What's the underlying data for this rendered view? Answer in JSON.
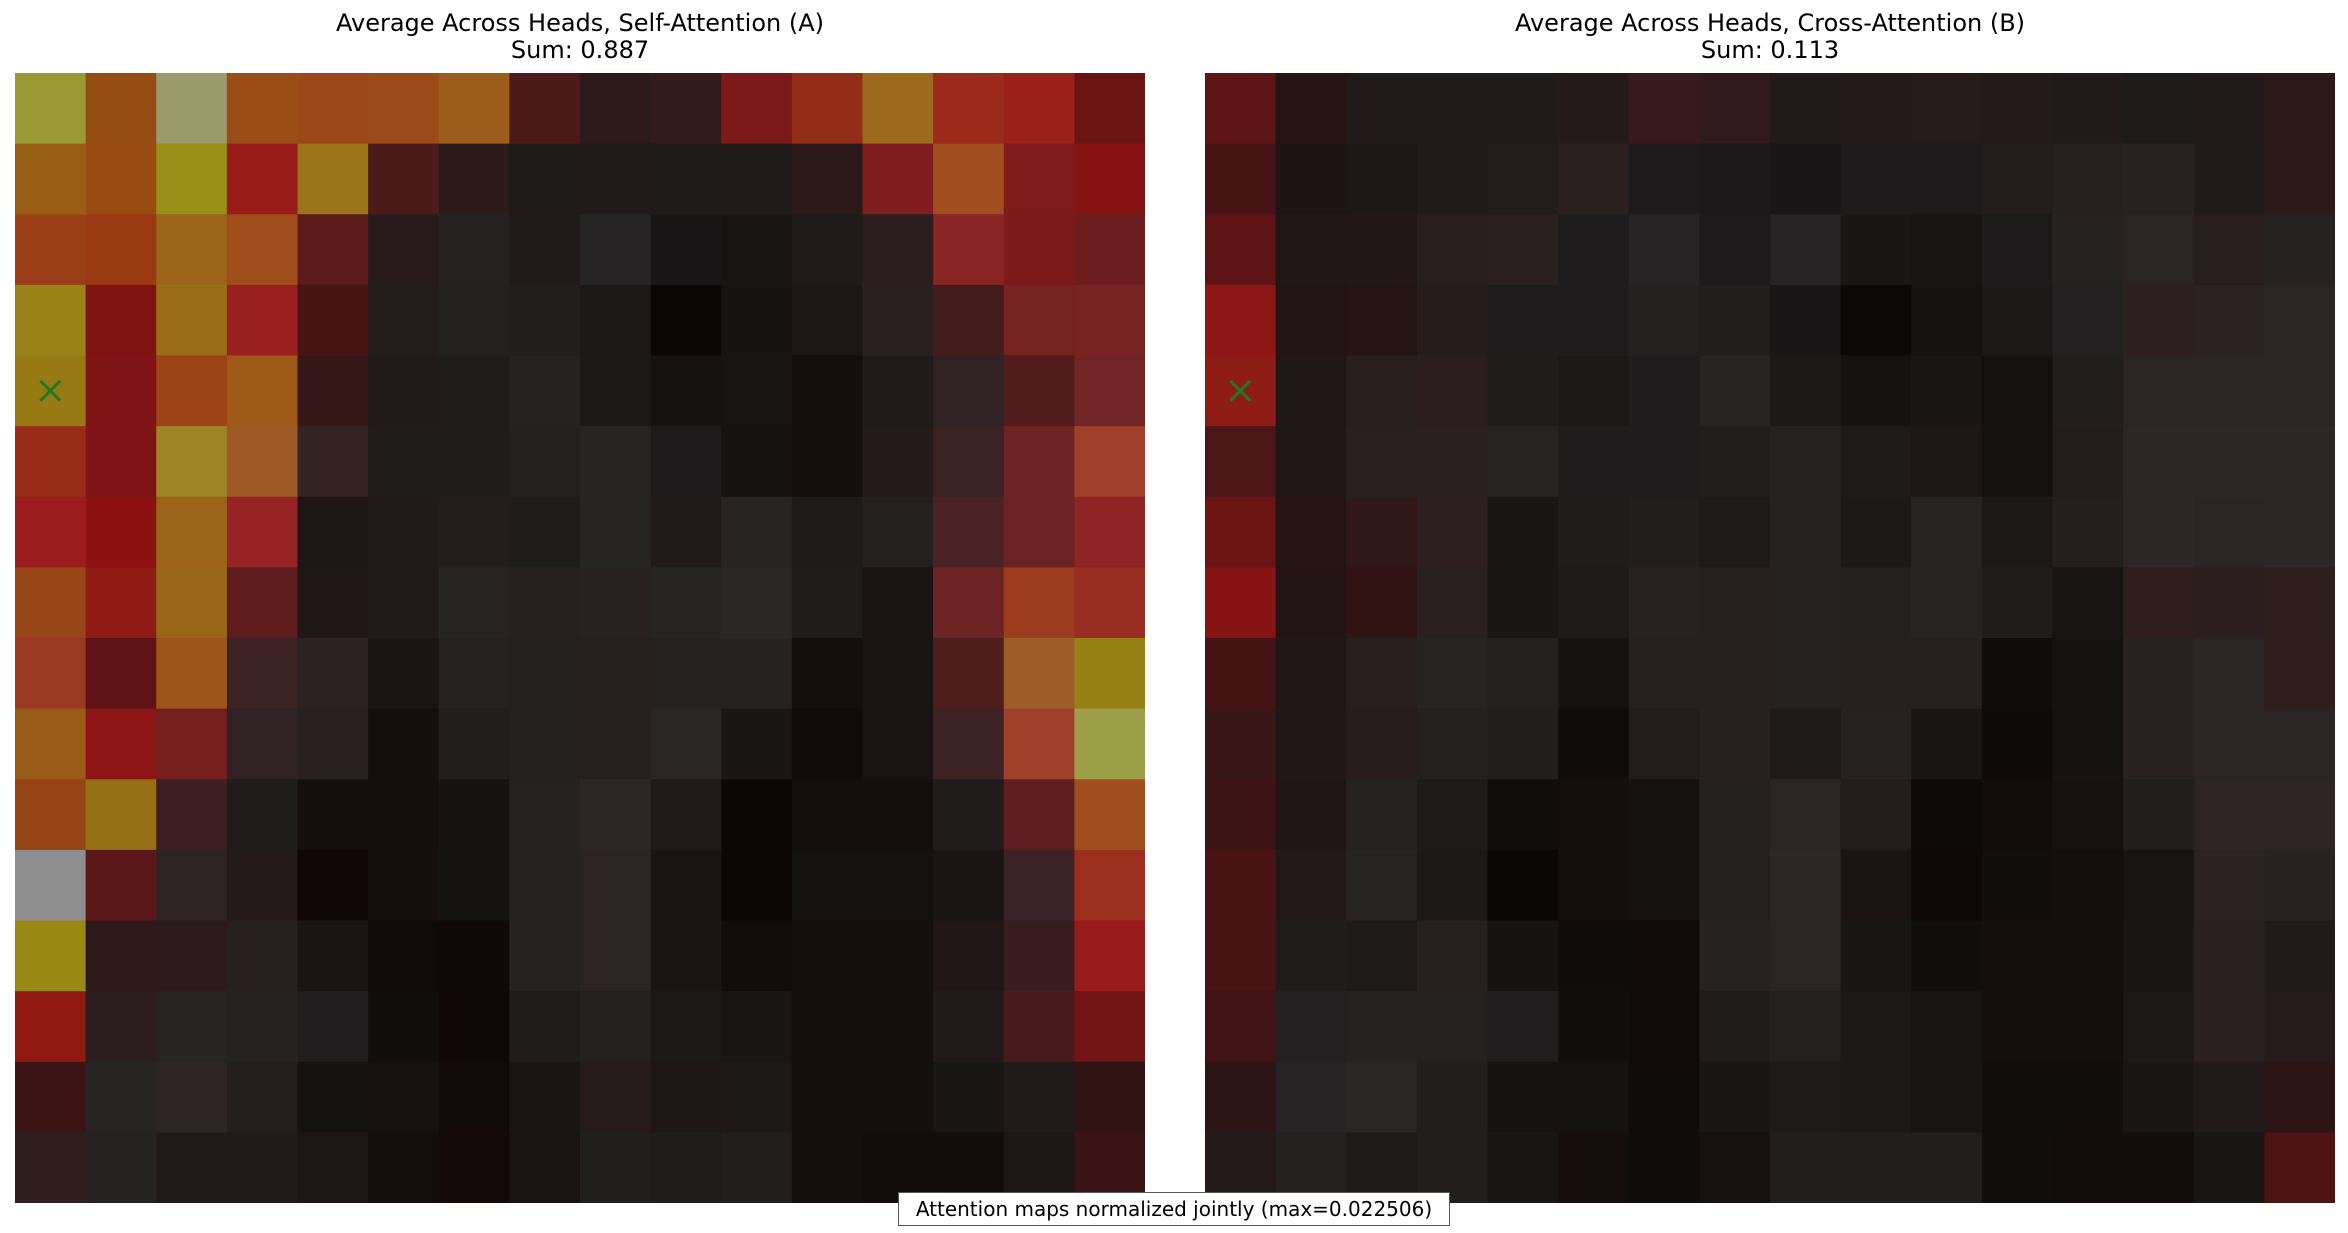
{
  "caption": "Attention maps normalized jointly (max=0.022506)",
  "colors": {
    "marker": "#1f7a1f",
    "caption_border": "#555555"
  },
  "chart_data": [
    {
      "type": "heatmap",
      "title": "Average Across Heads, Self-Attention (A)",
      "subtitle": "Sum: 0.887",
      "rows": 16,
      "cols": 16,
      "marker": {
        "symbol": "x",
        "row": 4,
        "col": 0
      },
      "cell_colors": [
        [
          "#9a9a34",
          "#964d13",
          "#9a9a6a",
          "#9a4d17",
          "#9c4819",
          "#9b4c1a",
          "#9c5c1c",
          "#4c1a1a",
          "#2d1a1a",
          "#341a1a",
          "#7c1a1a",
          "#922e18",
          "#9c6a1c",
          "#9a2a1a",
          "#9a2018",
          "#6a1414"
        ],
        [
          "#985e14",
          "#984c12",
          "#989018",
          "#9a1c1a",
          "#9c7418",
          "#4c1a1a",
          "#2a1a1a",
          "#1e1a1a",
          "#201a1a",
          "#1e1a1a",
          "#201a1a",
          "#2c1a1a",
          "#801c1e",
          "#a04e20",
          "#7e1a1a",
          "#861414"
        ],
        [
          "#9a3e18",
          "#9a3a12",
          "#9c6418",
          "#9e4c1a",
          "#5c1a1a",
          "#281a1a",
          "#262222",
          "#201a1a",
          "#262424",
          "#181616",
          "#181414",
          "#201a1a",
          "#2c1e1e",
          "#882424",
          "#7c1a1a",
          "#6c1e1e"
        ],
        [
          "#9a8218",
          "#801212",
          "#9a6e16",
          "#9a2020",
          "#481414",
          "#241c1c",
          "#242020",
          "#221e1e",
          "#1c1818",
          "#0c0606",
          "#161212",
          "#1c1616",
          "#2a2020",
          "#441c1c",
          "#742222",
          "#782424"
        ],
        [
          "#987a14",
          "#7e1414",
          "#9c4418",
          "#9c5a16",
          "#341818",
          "#201a1a",
          "#201c1c",
          "#262222",
          "#1c1818",
          "#161212",
          "#181414",
          "#140e0e",
          "#221a1a",
          "#302222",
          "#521c1c",
          "#702424"
        ],
        [
          "#982c16",
          "#801414",
          "#9e8424",
          "#9e5a24",
          "#342424",
          "#201c1c",
          "#201c1c",
          "#242020",
          "#282424",
          "#1c1a1a",
          "#161212",
          "#140e0e",
          "#241a1a",
          "#3c2222",
          "#6c2424",
          "#a0402a"
        ],
        [
          "#9a1c1c",
          "#8c1212",
          "#9c6418",
          "#962424",
          "#1e1616",
          "#201a1a",
          "#221c1c",
          "#201c1c",
          "#282424",
          "#221a1a",
          "#282424",
          "#1e1a1a",
          "#242020",
          "#4a2226",
          "#6a2222",
          "#8e2424"
        ],
        [
          "#984618",
          "#901a14",
          "#986818",
          "#5e1c1c",
          "#201616",
          "#221a1a",
          "#282424",
          "#282020",
          "#2a2222",
          "#282424",
          "#2a2626",
          "#201c1c",
          "#1a1414",
          "#6c2424",
          "#9c3c1c",
          "#982e22"
        ],
        [
          "#9a3a22",
          "#5e1414",
          "#9c5418",
          "#3c2222",
          "#2c2222",
          "#1a1414",
          "#262222",
          "#242020",
          "#262020",
          "#262222",
          "#262222",
          "#140e0e",
          "#1a1414",
          "#4e1e1e",
          "#9c5e26",
          "#968014"
        ],
        [
          "#9a5a18",
          "#8c1414",
          "#741e1e",
          "#302222",
          "#2a2020",
          "#140e0e",
          "#221e1e",
          "#242020",
          "#262020",
          "#2a2626",
          "#1a1616",
          "#100a0a",
          "#1a1212",
          "#3c2222",
          "#a0402a",
          "#9c9e48"
        ],
        [
          "#964414",
          "#967014",
          "#3e1e22",
          "#201c1c",
          "#160e0e",
          "#140e0e",
          "#161212",
          "#262222",
          "#2c2626",
          "#201a1a",
          "#0c0606",
          "#140e0e",
          "#140e0e",
          "#201c1c",
          "#5e1e22",
          "#a04e1c"
        ],
        [
          "#8e8e8e",
          "#5c1818",
          "#2e2222",
          "#241a1a",
          "#100606",
          "#160e0e",
          "#161212",
          "#262222",
          "#2c2424",
          "#1c1414",
          "#0e0606",
          "#141010",
          "#141010",
          "#1a1414",
          "#3c2226",
          "#9c2e1e"
        ],
        [
          "#988814",
          "#2e1a1a",
          "#2c1a1c",
          "#262020",
          "#1c1414",
          "#100a0a",
          "#100808",
          "#262222",
          "#2c2424",
          "#1a1414",
          "#120c0c",
          "#140e0e",
          "#140e0e",
          "#201616",
          "#381c1e",
          "#981a1a"
        ],
        [
          "#901a12",
          "#2c1e1e",
          "#282424",
          "#262222",
          "#201e1e",
          "#120e0e",
          "#100808",
          "#201c1c",
          "#242020",
          "#1c1818",
          "#1a1616",
          "#140e0e",
          "#140e0e",
          "#221a1a",
          "#481c1c",
          "#721414"
        ],
        [
          "#3c1414",
          "#282424",
          "#2e2424",
          "#241e1e",
          "#161212",
          "#161010",
          "#120a0a",
          "#1a1414",
          "#261a1a",
          "#1e1616",
          "#1c1818",
          "#140e0e",
          "#140e0e",
          "#1a1616",
          "#201a1a",
          "#301414"
        ],
        [
          "#2e1e1e",
          "#262222",
          "#221a1a",
          "#201a1a",
          "#1e1616",
          "#160e0e",
          "#140808",
          "#1a1212",
          "#221e1e",
          "#201c1c",
          "#221e1e",
          "#140e0e",
          "#140c0c",
          "#120c0c",
          "#1c1616",
          "#3a1414"
        ]
      ]
    },
    {
      "type": "heatmap",
      "title": "Average Across Heads, Cross-Attention (B)",
      "subtitle": "Sum: 0.113",
      "rows": 16,
      "cols": 16,
      "marker": {
        "symbol": "x",
        "row": 4,
        "col": 0
      },
      "cell_colors": [
        [
          "#5c1414",
          "#261414",
          "#201a1a",
          "#201a1a",
          "#201a1a",
          "#241a1a",
          "#361a1e",
          "#301a1e",
          "#221a1a",
          "#241a1a",
          "#261a1a",
          "#241a1a",
          "#221a1a",
          "#1e1a1a",
          "#221a1a",
          "#2c1a1a"
        ],
        [
          "#461414",
          "#1e1414",
          "#1e1616",
          "#201a1a",
          "#221c1c",
          "#2a2020",
          "#1c1a1a",
          "#1a1818",
          "#181616",
          "#1c1a1a",
          "#1c1a1a",
          "#221c1c",
          "#262020",
          "#2a2222",
          "#201a1a",
          "#2c1a1a"
        ],
        [
          "#5e1414",
          "#201616",
          "#221616",
          "#281e1e",
          "#2a2020",
          "#1e1c1c",
          "#262424",
          "#1c1a1a",
          "#262424",
          "#1a1616",
          "#181414",
          "#1c1a1a",
          "#262222",
          "#2a2424",
          "#281e1e",
          "#262222"
        ],
        [
          "#8e1616",
          "#221414",
          "#241414",
          "#261c1c",
          "#1e1c1c",
          "#1e1c1c",
          "#242020",
          "#221e1e",
          "#181616",
          "#0c0808",
          "#161212",
          "#1c1818",
          "#222020",
          "#2e2020",
          "#2c2222",
          "#2c2424"
        ],
        [
          "#8e1c16",
          "#201616",
          "#281e1e",
          "#2c1e1e",
          "#201c1c",
          "#1c1818",
          "#1e1c1c",
          "#282424",
          "#1c1818",
          "#161212",
          "#1a1616",
          "#141010",
          "#221e1e",
          "#2a2424",
          "#2c2424",
          "#2c2424"
        ],
        [
          "#4c1616",
          "#201616",
          "#2a2020",
          "#2c2020",
          "#282424",
          "#1e1c1c",
          "#1e1c1c",
          "#221e1e",
          "#262222",
          "#1e1a1a",
          "#1c1616",
          "#141010",
          "#221c1c",
          "#2c2626",
          "#2c2626",
          "#2e2626"
        ],
        [
          "#6a1414",
          "#241414",
          "#301818",
          "#2e2020",
          "#1a1616",
          "#201c1c",
          "#221e1e",
          "#1e1a1a",
          "#262222",
          "#1c1818",
          "#282424",
          "#1c1818",
          "#241e1e",
          "#2c2626",
          "#2c2424",
          "#2c2626"
        ],
        [
          "#861414",
          "#221414",
          "#301414",
          "#2a2020",
          "#1a1616",
          "#1e1a1a",
          "#282222",
          "#262020",
          "#262222",
          "#242020",
          "#282424",
          "#201c1c",
          "#181414",
          "#301e1e",
          "#2c1e1e",
          "#2e1e1e"
        ],
        [
          "#441414",
          "#201616",
          "#281e1e",
          "#282424",
          "#242020",
          "#161212",
          "#262020",
          "#262020",
          "#262222",
          "#262020",
          "#262020",
          "#100c0c",
          "#161212",
          "#2a2222",
          "#2a2424",
          "#301e1e"
        ],
        [
          "#381616",
          "#201616",
          "#281c1c",
          "#242020",
          "#221e1e",
          "#100c0c",
          "#221c1c",
          "#262020",
          "#1e1a1a",
          "#262222",
          "#1a1616",
          "#0e0a0a",
          "#161212",
          "#2a2222",
          "#2c2424",
          "#2c2424"
        ],
        [
          "#3c1414",
          "#201414",
          "#262222",
          "#1e1a1a",
          "#120e0e",
          "#140e0e",
          "#161212",
          "#242020",
          "#2a2424",
          "#221c1c",
          "#0e0a0a",
          "#120c0c",
          "#161010",
          "#221e1e",
          "#2e2424",
          "#2e2424"
        ],
        [
          "#4a1414",
          "#221818",
          "#282424",
          "#1c1818",
          "#0a0606",
          "#140e0e",
          "#161212",
          "#242020",
          "#2c2626",
          "#1c1414",
          "#0e0808",
          "#120e0e",
          "#140e0e",
          "#181414",
          "#2c2222",
          "#2a2222"
        ],
        [
          "#4a1414",
          "#201c1c",
          "#1e1a1a",
          "#262020",
          "#161212",
          "#100c0c",
          "#100a0a",
          "#262222",
          "#2a2424",
          "#1a1616",
          "#120e0e",
          "#140e0e",
          "#140e0e",
          "#1a1616",
          "#2a2020",
          "#221a1a"
        ],
        [
          "#401414",
          "#222020",
          "#262222",
          "#262222",
          "#201e1e",
          "#120e0e",
          "#100a0a",
          "#201c1c",
          "#242020",
          "#1c1818",
          "#181414",
          "#140e0e",
          "#140e0e",
          "#1c1818",
          "#2c2020",
          "#261a1a"
        ],
        [
          "#2c1414",
          "#262424",
          "#2a2626",
          "#221e1e",
          "#161212",
          "#161212",
          "#100c0c",
          "#1a1616",
          "#1e1a1a",
          "#1c1818",
          "#181414",
          "#120e0e",
          "#120e0e",
          "#1a1616",
          "#221a1a",
          "#2c1414"
        ],
        [
          "#241a1a",
          "#242020",
          "#1e1a1a",
          "#221e1e",
          "#1a1616",
          "#160e0e",
          "#100c0c",
          "#161010",
          "#221e1e",
          "#221e1e",
          "#221e1e",
          "#120e0e",
          "#120c0c",
          "#120c0c",
          "#1a1616",
          "#4e1414"
        ]
      ]
    }
  ]
}
